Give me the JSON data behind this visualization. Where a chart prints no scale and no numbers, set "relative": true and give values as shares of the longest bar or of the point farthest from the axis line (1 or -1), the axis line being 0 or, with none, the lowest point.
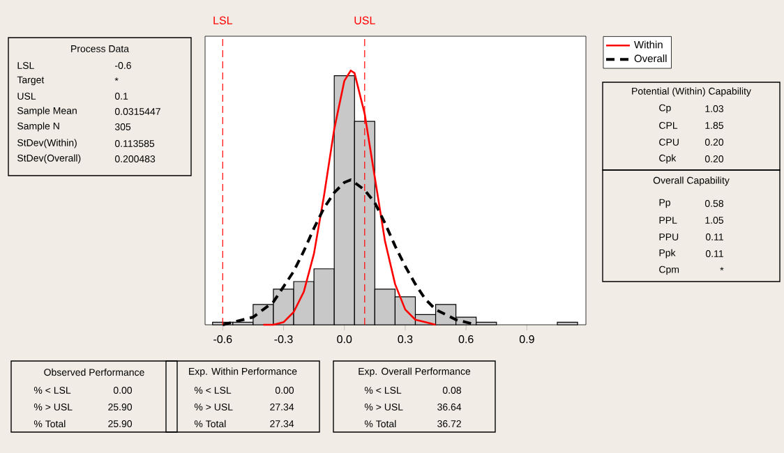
{
  "chart_data": {
    "type": "histogram",
    "relative": true,
    "xlim": [
      -0.687,
      1.191
    ],
    "xticks": [
      -0.6,
      -0.3,
      {
        "value": 0,
        "label": "0.0"
      },
      0.3,
      0.6,
      0.9
    ],
    "tick_labels": "x",
    "legend": "right",
    "marker": "none",
    "series": [
      {
        "color": "#c8c8c8",
        "bins": [
          -0.65,
          -0.55,
          -0.45,
          -0.35,
          -0.25,
          -0.15,
          -0.05,
          0.05,
          0.15,
          0.25,
          0.35,
          0.45,
          0.55,
          0.65,
          0.75,
          0.85,
          0.95,
          1.05,
          1.15
        ],
        "values": [
          0.01,
          0.01,
          0.08,
          0.14,
          0.17,
          0.22,
          0.98,
          0.8,
          0.14,
          0.11,
          0.04,
          0.08,
          0.03,
          0.01,
          0,
          0,
          0,
          0.01
        ]
      },
      {
        "type": "line",
        "name": "Within",
        "color": "#ff0000",
        "line_style": "solid",
        "x": [
          -0.4,
          -0.35,
          -0.3,
          -0.25,
          -0.2,
          -0.15,
          -0.1,
          -0.05,
          0,
          0.0315,
          0.05,
          0.1,
          0.15,
          0.2,
          0.25,
          0.3,
          0.35,
          0.4,
          0.45
        ],
        "values": [
          0.0,
          0.0,
          0.01,
          0.05,
          0.13,
          0.28,
          0.51,
          0.77,
          0.96,
          1.0,
          0.99,
          0.83,
          0.58,
          0.33,
          0.16,
          0.06,
          0.02,
          0.01,
          0.0
        ]
      },
      {
        "type": "line",
        "name": "Overall",
        "color": "#000000",
        "line_style": "dashed",
        "x": [
          -0.6,
          -0.55,
          -0.5,
          -0.45,
          -0.4,
          -0.35,
          -0.3,
          -0.25,
          -0.2,
          -0.15,
          -0.1,
          -0.05,
          0,
          0.0315,
          0.05,
          0.1,
          0.15,
          0.2,
          0.25,
          0.3,
          0.35,
          0.4,
          0.45,
          0.5,
          0.55,
          0.6,
          0.65
        ],
        "values": [
          0.0,
          0.01,
          0.02,
          0.03,
          0.06,
          0.09,
          0.15,
          0.21,
          0.29,
          0.38,
          0.46,
          0.52,
          0.56,
          0.57,
          0.56,
          0.53,
          0.48,
          0.4,
          0.31,
          0.23,
          0.16,
          0.1,
          0.06,
          0.04,
          0.02,
          0.01,
          0.0
        ]
      }
    ],
    "ref_lines": [
      {
        "axis": "x",
        "value": -0.6,
        "label": "LSL",
        "color": "#ff0000",
        "line_style": "dashed"
      },
      {
        "axis": "x",
        "value": 0.1,
        "label": "USL",
        "color": "#ff0000",
        "line_style": "dashed"
      }
    ],
    "annotations": [
      "Process Data",
      "LSL",
      "-0.6",
      "Target",
      "*",
      "USL",
      "0.1",
      "Sample Mean",
      "0.0315447",
      "Sample N",
      "305",
      "StDev(Within)",
      "0.113585",
      "StDev(Overall)",
      "0.200483",
      "Potential (Within) Capability",
      "Cp",
      "1.03",
      "CPL",
      "1.85",
      "CPU",
      "0.20",
      "Cpk",
      "0.20",
      "Overall Capability",
      "Pp",
      "0.58",
      "PPL",
      "1.05",
      "PPU",
      "0.11",
      "Ppk",
      "0.11",
      "Cpm",
      "*",
      "Observed Performance",
      "% < LSL",
      "0.00",
      "% > USL",
      "25.90",
      "% Total",
      "25.90",
      "Exp. Within Performance",
      "% < LSL",
      "0.00",
      "% > USL",
      "27.34",
      "% Total",
      "27.34",
      "Exp. Overall Performance",
      "% < LSL",
      "0.08",
      "% > USL",
      "36.64",
      "% Total",
      "36.72"
    ]
  }
}
